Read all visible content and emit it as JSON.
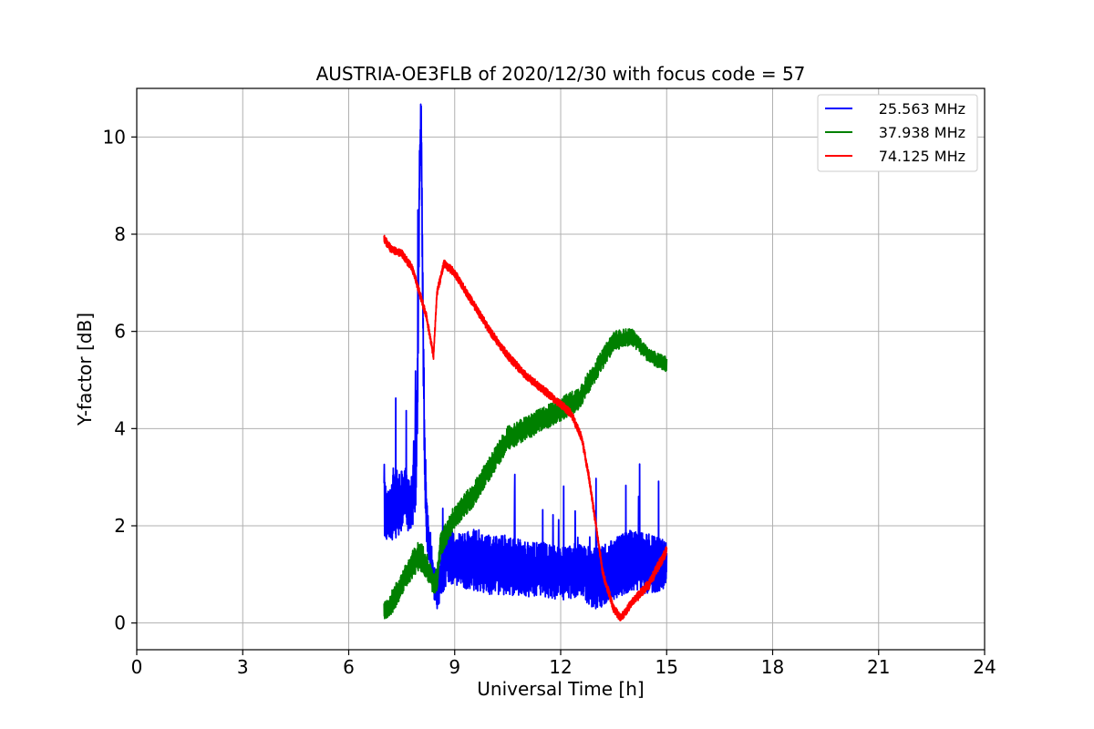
{
  "chart_data": {
    "type": "line",
    "title": "AUSTRIA-OE3FLB of 2020/12/30 with focus code = 57",
    "xlabel": "Universal Time [h]",
    "ylabel": "Y-factor [dB]",
    "xlim": [
      0,
      24
    ],
    "ylim": [
      -0.55,
      11.0
    ],
    "xticks": [
      0,
      3,
      6,
      9,
      12,
      15,
      18,
      21,
      24
    ],
    "yticks": [
      0,
      2,
      4,
      6,
      8,
      10
    ],
    "grid": true,
    "legend_position": "top-right",
    "series": [
      {
        "name": "25.563 MHz",
        "color": "#0000ff",
        "x": [
          7.0,
          7.1,
          7.2,
          7.3,
          7.4,
          7.5,
          7.6,
          7.7,
          7.8,
          7.9,
          7.95,
          8.0,
          8.05,
          8.1,
          8.15,
          8.2,
          8.3,
          8.4,
          8.5,
          8.6,
          8.8,
          9.0,
          9.5,
          10.0,
          10.5,
          11.0,
          11.5,
          12.0,
          12.5,
          13.0,
          13.5,
          14.0,
          14.5,
          15.0
        ],
        "y": [
          2.4,
          2.2,
          2.3,
          2.5,
          2.4,
          2.5,
          2.6,
          2.4,
          2.6,
          3.0,
          5.0,
          9.0,
          10.5,
          6.5,
          3.5,
          2.2,
          1.5,
          0.9,
          0.6,
          1.0,
          1.4,
          1.3,
          1.3,
          1.2,
          1.2,
          1.1,
          1.1,
          1.0,
          1.1,
          0.9,
          1.1,
          1.3,
          1.2,
          1.2
        ],
        "spread": [
          0.9,
          0.8,
          0.9,
          1.2,
          1.0,
          0.9,
          0.8,
          0.8,
          0.9,
          1.0,
          1.2,
          1.2,
          0.6,
          1.2,
          1.0,
          0.8,
          0.7,
          0.5,
          0.5,
          0.7,
          0.8,
          0.8,
          0.9,
          0.9,
          0.9,
          0.8,
          0.8,
          0.8,
          0.8,
          0.9,
          0.9,
          0.9,
          0.9,
          0.7
        ]
      },
      {
        "name": "37.938 MHz",
        "color": "#008000",
        "x": [
          7.0,
          7.2,
          7.5,
          7.8,
          8.0,
          8.2,
          8.4,
          8.5,
          8.6,
          8.8,
          9.0,
          9.5,
          10.0,
          10.5,
          11.0,
          11.5,
          12.0,
          12.5,
          13.0,
          13.5,
          14.0,
          14.5,
          15.0
        ],
        "y": [
          0.2,
          0.4,
          0.8,
          1.2,
          1.4,
          1.2,
          0.8,
          0.9,
          1.6,
          1.9,
          2.2,
          2.6,
          3.2,
          3.8,
          4.0,
          4.2,
          4.4,
          4.6,
          5.2,
          5.8,
          5.9,
          5.5,
          5.3
        ],
        "spread": [
          0.3,
          0.35,
          0.35,
          0.4,
          0.45,
          0.4,
          0.3,
          0.35,
          0.35,
          0.35,
          0.35,
          0.35,
          0.35,
          0.35,
          0.35,
          0.35,
          0.35,
          0.35,
          0.3,
          0.3,
          0.25,
          0.2,
          0.25
        ]
      },
      {
        "name": "74.125 MHz",
        "color": "#ff0000",
        "x": [
          7.0,
          7.2,
          7.5,
          7.8,
          8.0,
          8.2,
          8.4,
          8.5,
          8.7,
          9.0,
          9.5,
          10.0,
          10.5,
          11.0,
          11.5,
          12.0,
          12.3,
          12.6,
          12.8,
          13.0,
          13.2,
          13.5,
          13.7,
          14.0,
          14.5,
          15.0
        ],
        "y": [
          7.9,
          7.7,
          7.6,
          7.3,
          6.8,
          6.3,
          5.5,
          6.8,
          7.4,
          7.2,
          6.6,
          6.0,
          5.5,
          5.1,
          4.8,
          4.5,
          4.3,
          3.8,
          3.0,
          2.0,
          1.0,
          0.3,
          0.1,
          0.4,
          0.8,
          1.5
        ],
        "spread": [
          0.12,
          0.12,
          0.12,
          0.12,
          0.12,
          0.12,
          0.12,
          0.12,
          0.12,
          0.12,
          0.12,
          0.12,
          0.12,
          0.12,
          0.12,
          0.12,
          0.12,
          0.12,
          0.12,
          0.12,
          0.12,
          0.12,
          0.12,
          0.12,
          0.15,
          0.15
        ]
      }
    ]
  }
}
